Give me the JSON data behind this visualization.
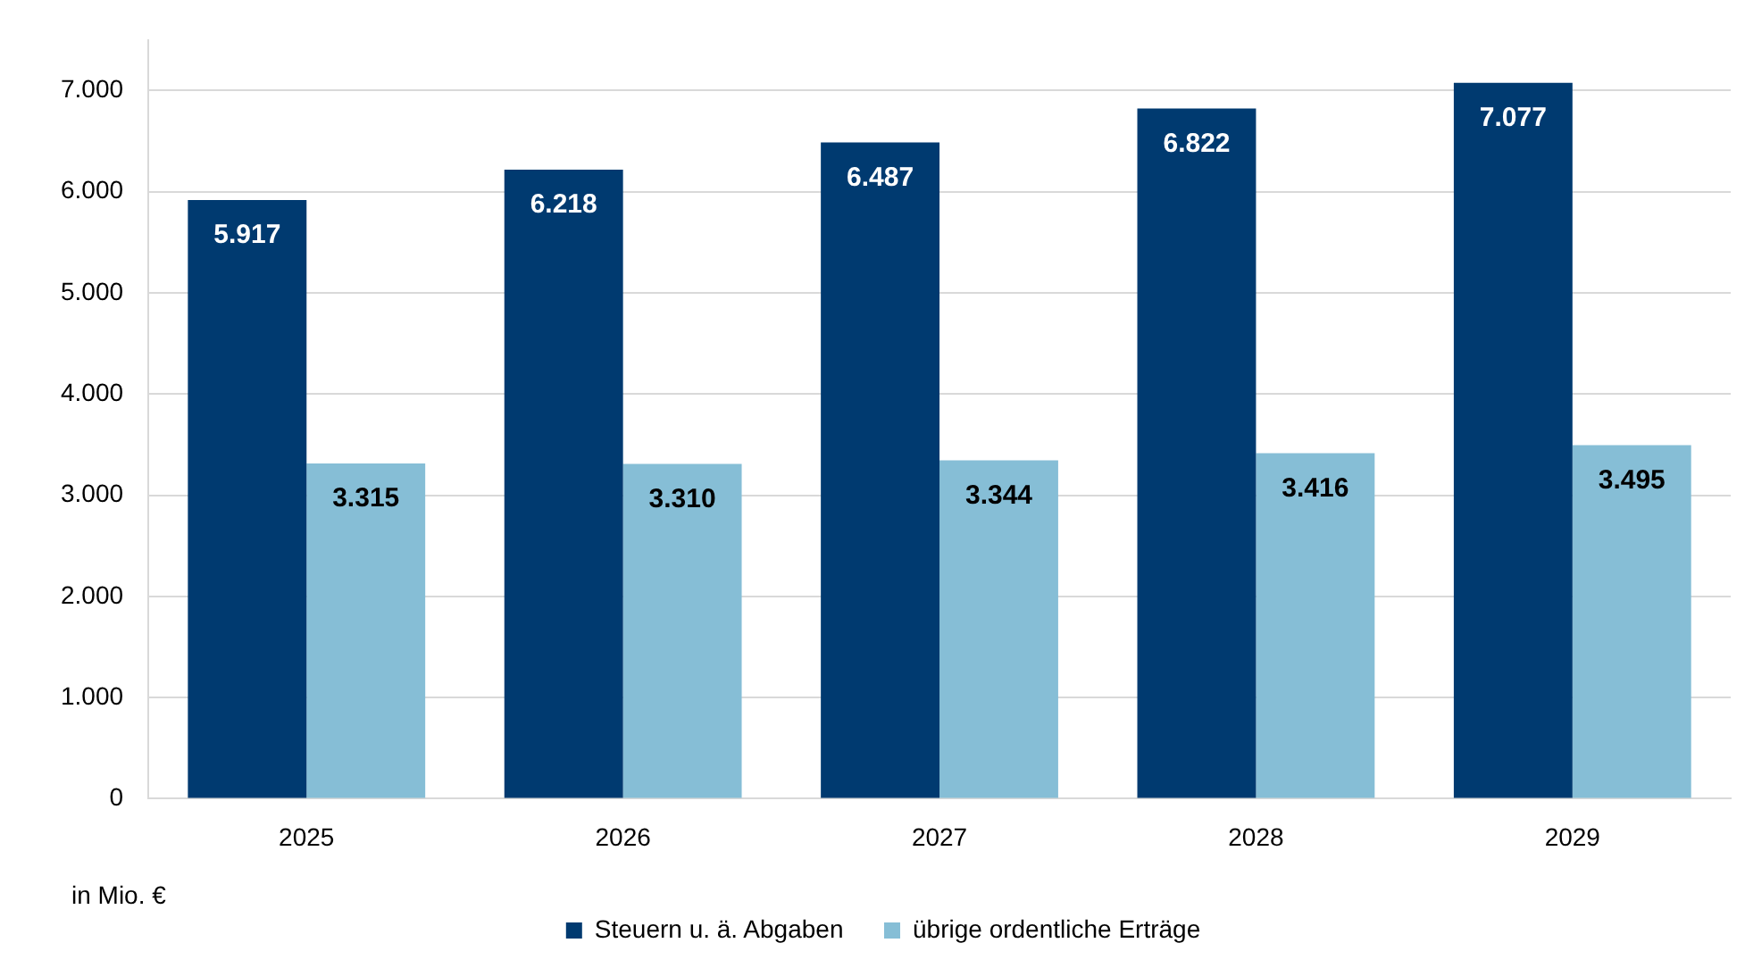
{
  "chart_data": {
    "type": "bar",
    "categories": [
      "2025",
      "2026",
      "2027",
      "2028",
      "2029"
    ],
    "series": [
      {
        "name": "Steuern u. ä. Abgaben",
        "color": "#003a70",
        "values": [
          5917,
          6218,
          6487,
          6822,
          7077
        ],
        "value_labels": [
          "5.917",
          "6.218",
          "6.487",
          "6.822",
          "7.077"
        ]
      },
      {
        "name": "übrige ordentliche Erträge",
        "color": "#86bed6",
        "values": [
          3315,
          3310,
          3344,
          3416,
          3495
        ],
        "value_labels": [
          "3.315",
          "3.310",
          "3.344",
          "3.416",
          "3.495"
        ]
      }
    ],
    "ylim": [
      0,
      7500
    ],
    "yticks": [
      0,
      {
        "value": 1000,
        "label": "1.000"
      },
      {
        "value": 2000,
        "label": "2.000"
      },
      {
        "value": 3000,
        "label": "3.000"
      },
      {
        "value": 4000,
        "label": "4.000"
      },
      {
        "value": 5000,
        "label": "5.000"
      },
      {
        "value": 6000,
        "label": "6.000"
      },
      {
        "value": 7000,
        "label": "7.000"
      }
    ],
    "grid": "y",
    "legend": "bottom",
    "annotations": [
      "in Mio. €"
    ]
  }
}
